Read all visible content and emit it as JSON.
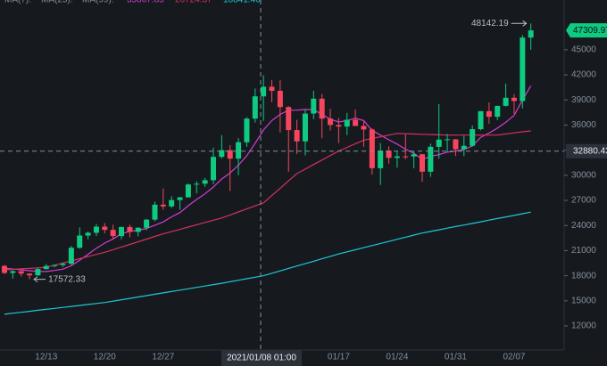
{
  "chart_data": {
    "type": "candlestick",
    "categories": [
      null,
      null,
      null,
      null,
      null,
      "12/13",
      null,
      null,
      null,
      null,
      null,
      null,
      "12/20",
      null,
      null,
      null,
      null,
      null,
      null,
      "12/27",
      null,
      null,
      null,
      null,
      null,
      null,
      null,
      null,
      null,
      null,
      null,
      null,
      null,
      null,
      null,
      null,
      null,
      null,
      null,
      null,
      "01/17",
      null,
      null,
      null,
      null,
      null,
      null,
      "01/24",
      null,
      null,
      null,
      null,
      null,
      null,
      "01/31",
      null,
      null,
      null,
      null,
      null,
      null,
      "02/07",
      null,
      null
    ],
    "open": [
      19170,
      18330,
      18550,
      18250,
      18040,
      18800,
      19170,
      19270,
      19430,
      21340,
      22800,
      23130,
      23860,
      23480,
      22740,
      23820,
      23240,
      23730,
      24700,
      26490,
      26280,
      27040,
      27370,
      28900,
      28990,
      29410,
      32200,
      33000,
      31990,
      33950,
      36770,
      39430,
      40580,
      40090,
      38150,
      35400,
      34050,
      37370,
      39150,
      36770,
      36010,
      35820,
      36630,
      35890,
      35470,
      30850,
      32950,
      32080,
      32260,
      32250,
      32510,
      30430,
      33400,
      34260,
      34300,
      33110,
      33520,
      35510,
      37660,
      36990,
      38290,
      39260,
      38870,
      46450
    ],
    "high": [
      19290,
      18630,
      18560,
      18290,
      18950,
      19400,
      19350,
      19570,
      21560,
      23770,
      23280,
      24170,
      24300,
      24100,
      23840,
      24100,
      23800,
      24790,
      26870,
      28420,
      27500,
      27400,
      29020,
      29300,
      29680,
      33300,
      34790,
      33600,
      34440,
      36940,
      40360,
      41950,
      41380,
      41350,
      38260,
      36630,
      37850,
      40100,
      39700,
      37950,
      36850,
      37450,
      37850,
      36420,
      35600,
      33830,
      33460,
      32940,
      34880,
      32920,
      32560,
      33780,
      38500,
      34930,
      34330,
      34720,
      35950,
      37660,
      38700,
      38310,
      40950,
      39700,
      46750,
      48142.19
    ],
    "low": [
      18200,
      17650,
      17910,
      17572.33,
      18020,
      18730,
      19000,
      19050,
      19300,
      21230,
      22350,
      22750,
      23060,
      22350,
      22350,
      22600,
      22700,
      23430,
      24500,
      25880,
      26100,
      25880,
      27320,
      27850,
      28620,
      28950,
      32000,
      28130,
      30000,
      33400,
      36300,
      36500,
      38720,
      35110,
      30420,
      32530,
      32380,
      36700,
      34410,
      35360,
      33850,
      34800,
      35900,
      33400,
      30070,
      28850,
      31390,
      30900,
      31910,
      30840,
      29240,
      29810,
      31990,
      32820,
      32300,
      32300,
      33420,
      35370,
      36160,
      36600,
      38220,
      37350,
      37990,
      45000
    ],
    "close": [
      18330,
      18550,
      18250,
      18040,
      18800,
      19170,
      19270,
      19430,
      21340,
      22800,
      23130,
      23860,
      23480,
      22740,
      23820,
      23240,
      23730,
      24700,
      26490,
      26280,
      27040,
      27370,
      28900,
      28990,
      29410,
      32200,
      33000,
      31990,
      33950,
      36770,
      39430,
      40580,
      40090,
      38150,
      35400,
      34050,
      37370,
      39150,
      36770,
      36010,
      35820,
      36630,
      35890,
      35470,
      30850,
      32950,
      32080,
      32260,
      32250,
      32510,
      30430,
      33400,
      34260,
      34300,
      33110,
      33520,
      35510,
      37660,
      36990,
      38290,
      39260,
      38870,
      46450,
      47309.97
    ],
    "up_color": "#0ecb81",
    "down_color": "#f6465d",
    "series": [
      {
        "name": "MA(7):",
        "legend_value": 35867.85,
        "color": "#d63bd6",
        "values": [
          18900,
          18800,
          18700,
          18600,
          18500,
          18500,
          18630,
          18790,
          19190,
          19840,
          20560,
          21290,
          21900,
          22400,
          23020,
          23300,
          23430,
          23650,
          24030,
          24430,
          25040,
          25550,
          26360,
          27110,
          27780,
          28600,
          29560,
          30270,
          31210,
          32330,
          33820,
          35420,
          36540,
          37280,
          37770,
          37780,
          37870,
          37830,
          37280,
          36700,
          36370,
          36540,
          36810,
          36530,
          35350,
          34800,
          34240,
          33730,
          33110,
          32620,
          31900,
          32270,
          32460,
          32770,
          32890,
          33080,
          33500,
          34540,
          35050,
          35630,
          36330,
          37160,
          39000,
          40690
        ]
      },
      {
        "name": "MA(25):",
        "legend_value": 26724.37,
        "color": "#d4305f",
        "values": [
          18700,
          18760,
          18820,
          18880,
          18940,
          19000,
          19260,
          19510,
          19770,
          20030,
          20290,
          20540,
          20800,
          21110,
          21430,
          21740,
          22060,
          22370,
          22690,
          23000,
          23270,
          23540,
          23810,
          24090,
          24360,
          24630,
          24900,
          25260,
          25620,
          25980,
          26340,
          26700,
          27580,
          28450,
          29330,
          30200,
          30740,
          31280,
          31820,
          32360,
          32900,
          33330,
          33770,
          34200,
          34400,
          34600,
          34800,
          35000,
          34970,
          34930,
          34900,
          34870,
          34830,
          34800,
          34800,
          34800,
          34800,
          34800,
          34800,
          34800,
          34930,
          35070,
          35200,
          35300
        ]
      },
      {
        "name": "MA(99):",
        "legend_value": 18841.46,
        "color": "#1fc7d4",
        "values": [
          13400,
          13520,
          13630,
          13750,
          13870,
          13980,
          14100,
          14220,
          14330,
          14450,
          14570,
          14680,
          14800,
          14960,
          15130,
          15290,
          15460,
          15620,
          15790,
          15950,
          16110,
          16280,
          16440,
          16610,
          16770,
          16940,
          17100,
          17280,
          17460,
          17640,
          17820,
          18000,
          18290,
          18580,
          18870,
          19160,
          19440,
          19730,
          20020,
          20310,
          20600,
          20850,
          21100,
          21350,
          21600,
          21850,
          22100,
          22350,
          22600,
          22850,
          23100,
          23290,
          23480,
          23680,
          23870,
          24060,
          24250,
          24440,
          24640,
          24830,
          25020,
          25210,
          25410,
          25600
        ]
      }
    ],
    "ylim": [
      9130,
      50940
    ],
    "yticks": [
      12000,
      15000,
      18000,
      21000,
      24000,
      27000,
      30000,
      33000,
      36000,
      39000,
      42000,
      45000
    ],
    "max_high": 48142.19,
    "min_low": 17572.33,
    "last_price": 47309.97,
    "crosshair": {
      "label": "2021/01/08 01:00",
      "price": 32880.43
    },
    "grid": false
  }
}
